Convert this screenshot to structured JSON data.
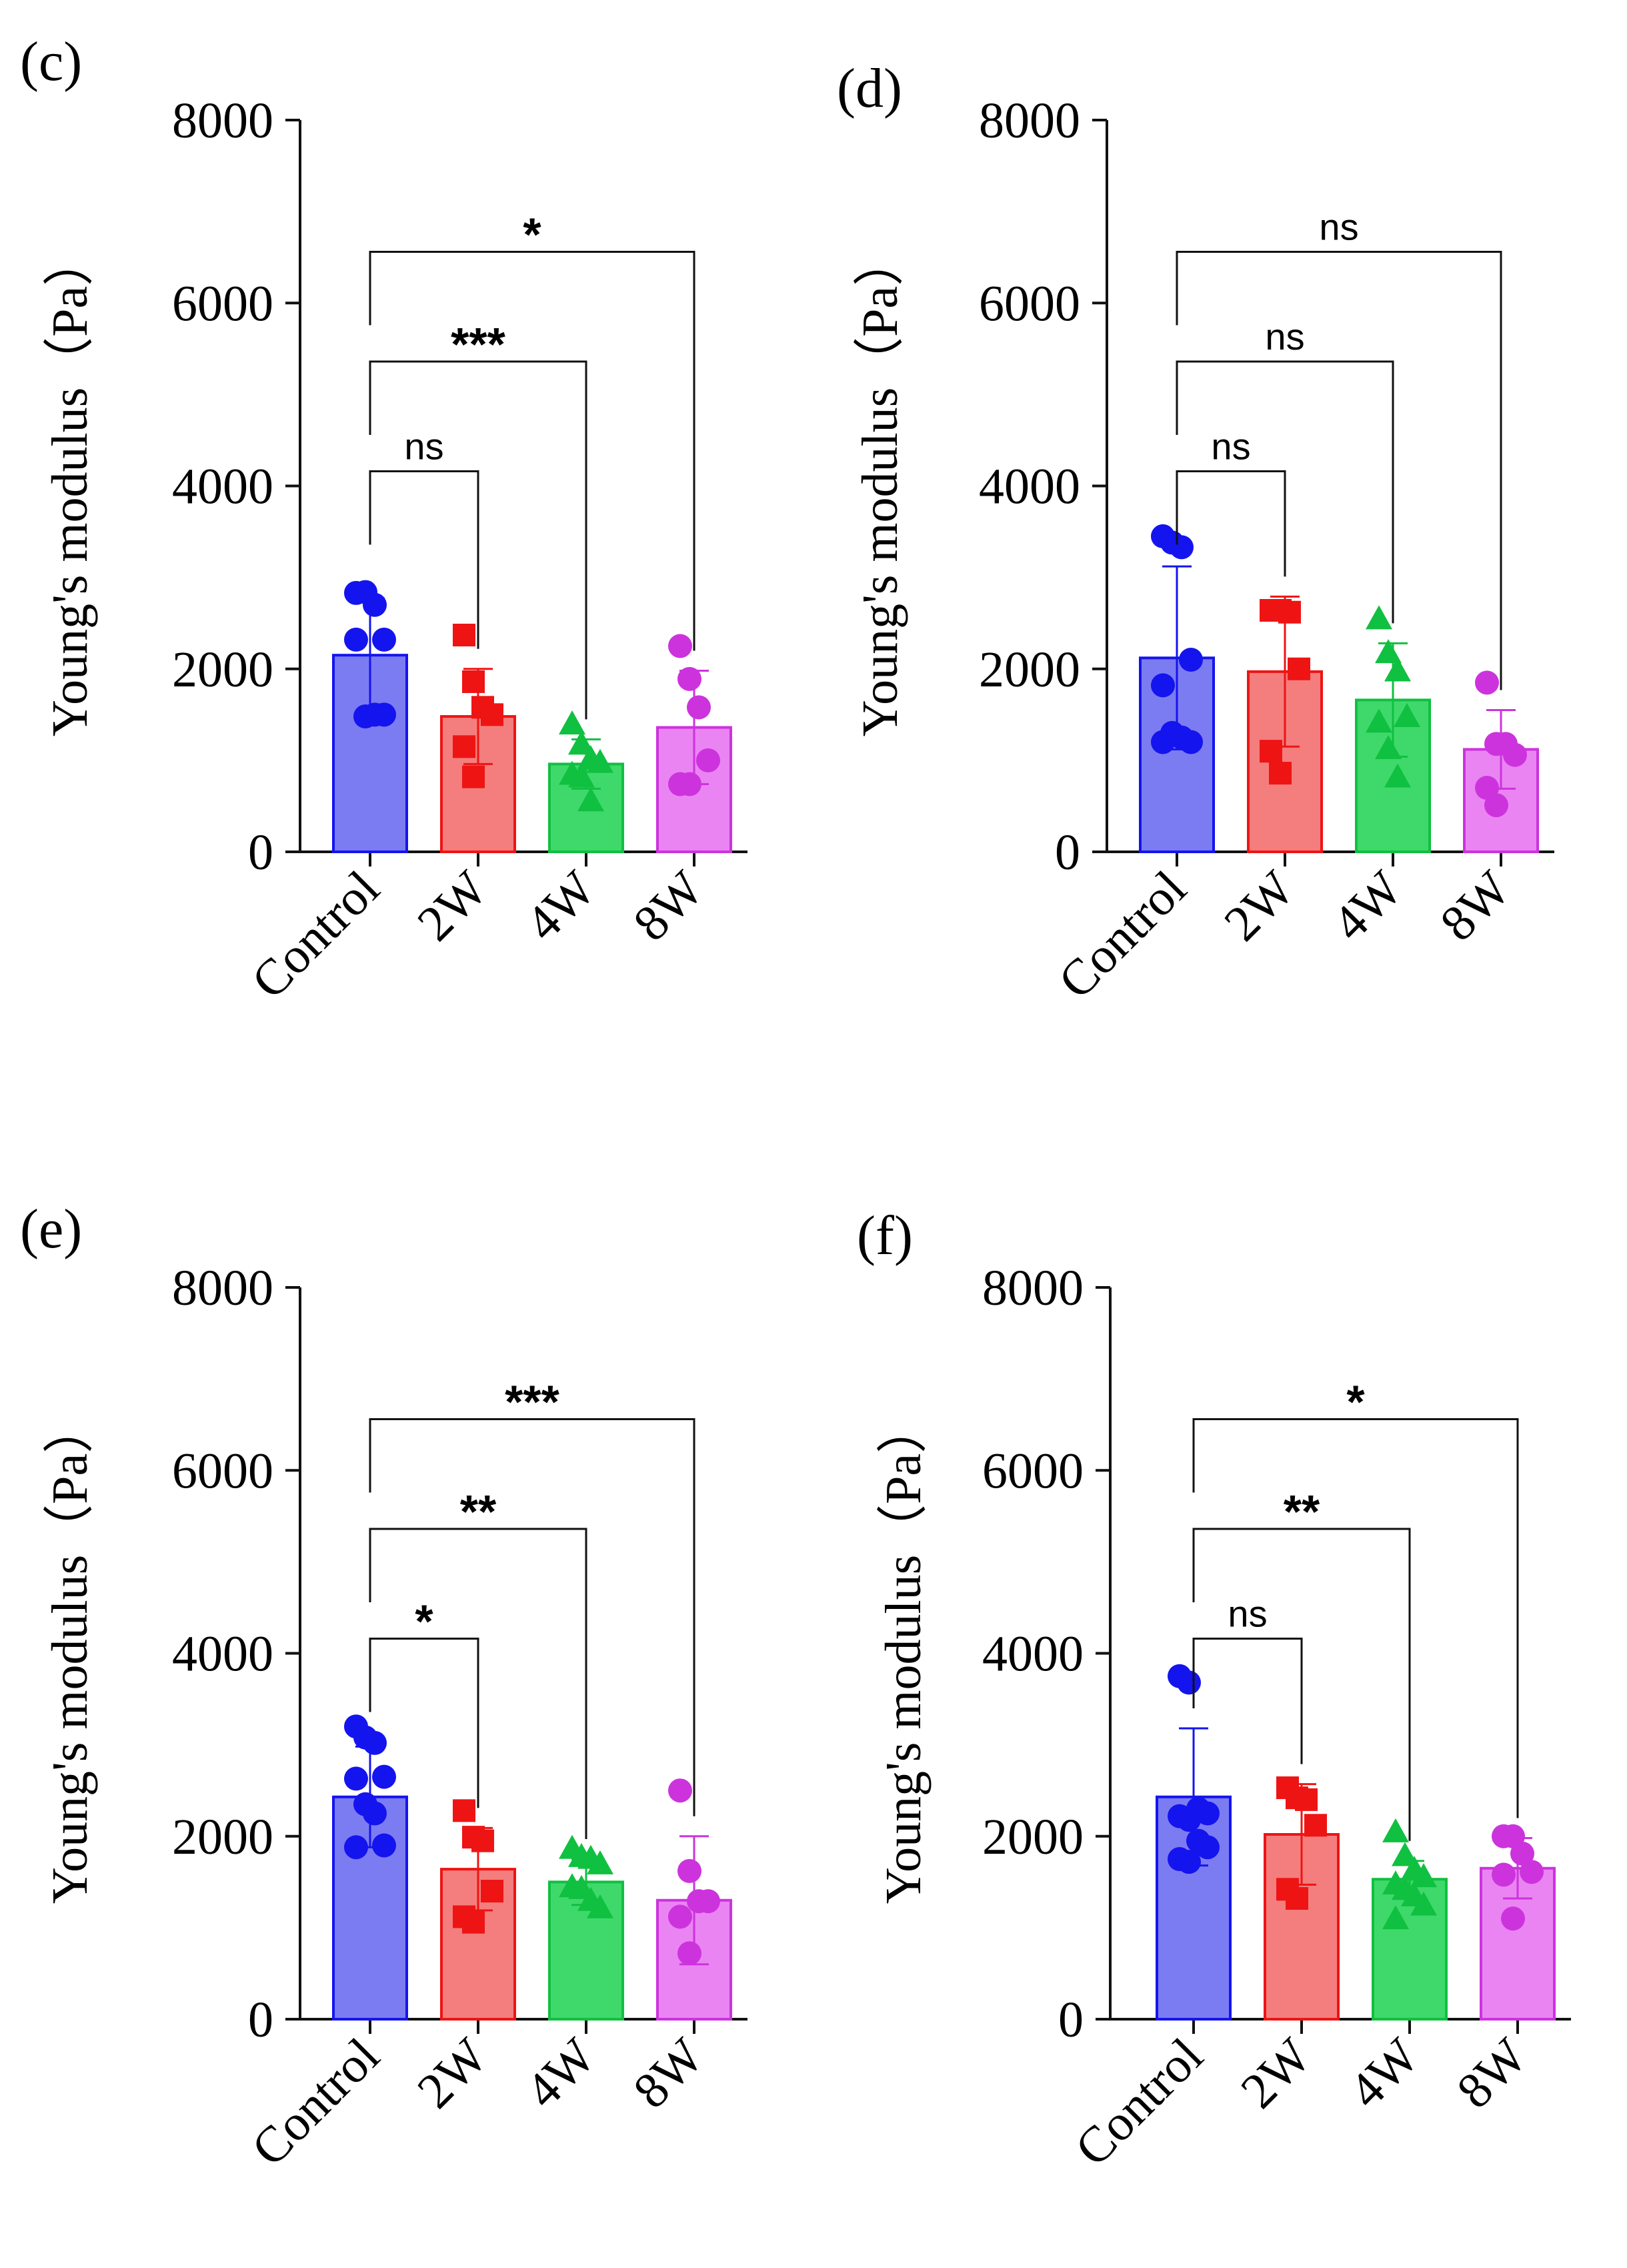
{
  "colors": {
    "Control": "#1414ee",
    "2W": "#ee1414",
    "4W": "#10c040",
    "8W": "#cc33dd",
    "Control_fill": "#7c7cf2",
    "2W_fill": "#f47e7e",
    "4W_fill": "#3fd96b",
    "8W_fill": "#ea84f3",
    "axis": "#111111"
  },
  "chart_data": [
    {
      "type": "bar",
      "panel_label": "(c)",
      "title": "",
      "xlabel": "",
      "ylabel": "Young's modulus（Pa）",
      "categories": [
        "Control",
        "2W",
        "4W",
        "8W"
      ],
      "marker_shapes": [
        "circle",
        "square",
        "triangle",
        "circle"
      ],
      "ylim": [
        0,
        8000
      ],
      "yticks": [
        "0",
        "2000",
        "4000",
        "6000",
        "8000"
      ],
      "means": [
        2150,
        1480,
        960,
        1360
      ],
      "sd": [
        620,
        520,
        270,
        620
      ],
      "points": [
        [
          2830,
          2840,
          2700,
          2320,
          2320,
          1480,
          1500,
          1500
        ],
        [
          2370,
          1860,
          1580,
          1500,
          1150,
          820
        ],
        [
          1400,
          1180,
          1020,
          980,
          850,
          820,
          560
        ],
        [
          2250,
          1890,
          1580,
          1000,
          740,
          740
        ]
      ],
      "comparisons": [
        {
          "from": "Control",
          "to": "2W",
          "label": "ns"
        },
        {
          "from": "Control",
          "to": "4W",
          "label": "***"
        },
        {
          "from": "Control",
          "to": "8W",
          "label": "*"
        }
      ]
    },
    {
      "type": "bar",
      "panel_label": "(d)",
      "title": "",
      "xlabel": "",
      "ylabel": "Young's modulus（Pa）",
      "categories": [
        "Control",
        "2W",
        "4W",
        "8W"
      ],
      "marker_shapes": [
        "circle",
        "square",
        "triangle",
        "circle"
      ],
      "ylim": [
        0,
        8000
      ],
      "yticks": [
        "0",
        "2000",
        "4000",
        "6000",
        "8000"
      ],
      "means": [
        2120,
        1970,
        1660,
        1120
      ],
      "sd": [
        1000,
        820,
        620,
        430
      ],
      "points": [
        [
          3450,
          3380,
          3330,
          2100,
          1820,
          1300,
          1250,
          1200,
          1200
        ],
        [
          2640,
          2640,
          2620,
          2000,
          1100,
          860
        ],
        [
          2550,
          2180,
          1980,
          1480,
          1420,
          1130,
          820
        ],
        [
          1850,
          1180,
          1180,
          1060,
          700,
          510
        ]
      ],
      "comparisons": [
        {
          "from": "Control",
          "to": "2W",
          "label": "ns"
        },
        {
          "from": "Control",
          "to": "4W",
          "label": "ns"
        },
        {
          "from": "Control",
          "to": "8W",
          "label": "ns"
        }
      ]
    },
    {
      "type": "bar",
      "panel_label": "(e)",
      "title": "",
      "xlabel": "",
      "ylabel": "Young's modulus（Pa）",
      "categories": [
        "Control",
        "2W",
        "4W",
        "8W"
      ],
      "marker_shapes": [
        "circle",
        "square",
        "triangle",
        "circle"
      ],
      "ylim": [
        0,
        8000
      ],
      "yticks": [
        "0",
        "2000",
        "4000",
        "6000",
        "8000"
      ],
      "means": [
        2430,
        1640,
        1500,
        1300
      ],
      "sd": [
        550,
        450,
        250,
        700
      ],
      "points": [
        [
          3200,
          3080,
          3020,
          2650,
          2630,
          2350,
          2250,
          1900,
          1880
        ],
        [
          2280,
          1990,
          1950,
          1400,
          1120,
          1060
        ],
        [
          1870,
          1780,
          1760,
          1700,
          1450,
          1430,
          1300,
          1220
        ],
        [
          2500,
          1620,
          1290,
          1290,
          1120,
          720
        ]
      ],
      "comparisons": [
        {
          "from": "Control",
          "to": "2W",
          "label": "*"
        },
        {
          "from": "Control",
          "to": "4W",
          "label": "**"
        },
        {
          "from": "Control",
          "to": "8W",
          "label": "***"
        }
      ]
    },
    {
      "type": "bar",
      "panel_label": "(f)",
      "title": "",
      "xlabel": "",
      "ylabel": "Young's modulus（Pa）",
      "categories": [
        "Control",
        "2W",
        "4W",
        "8W"
      ],
      "marker_shapes": [
        "circle",
        "square",
        "triangle",
        "circle"
      ],
      "ylim": [
        0,
        8000
      ],
      "yticks": [
        "0",
        "2000",
        "4000",
        "6000",
        "8000"
      ],
      "means": [
        2430,
        2020,
        1530,
        1650
      ],
      "sd": [
        750,
        550,
        200,
        330
      ],
      "points": [
        [
          3750,
          3680,
          2300,
          2250,
          2220,
          2180,
          1950,
          1880,
          1750,
          1720
        ],
        [
          2530,
          2420,
          2400,
          2120,
          1420,
          1320
        ],
        [
          2050,
          1790,
          1640,
          1560,
          1480,
          1420,
          1350,
          1250,
          1100
        ],
        [
          2000,
          2000,
          1810,
          1610,
          1580,
          1100
        ]
      ],
      "comparisons": [
        {
          "from": "Control",
          "to": "2W",
          "label": "ns"
        },
        {
          "from": "Control",
          "to": "4W",
          "label": "**"
        },
        {
          "from": "Control",
          "to": "8W",
          "label": "*"
        }
      ]
    }
  ]
}
